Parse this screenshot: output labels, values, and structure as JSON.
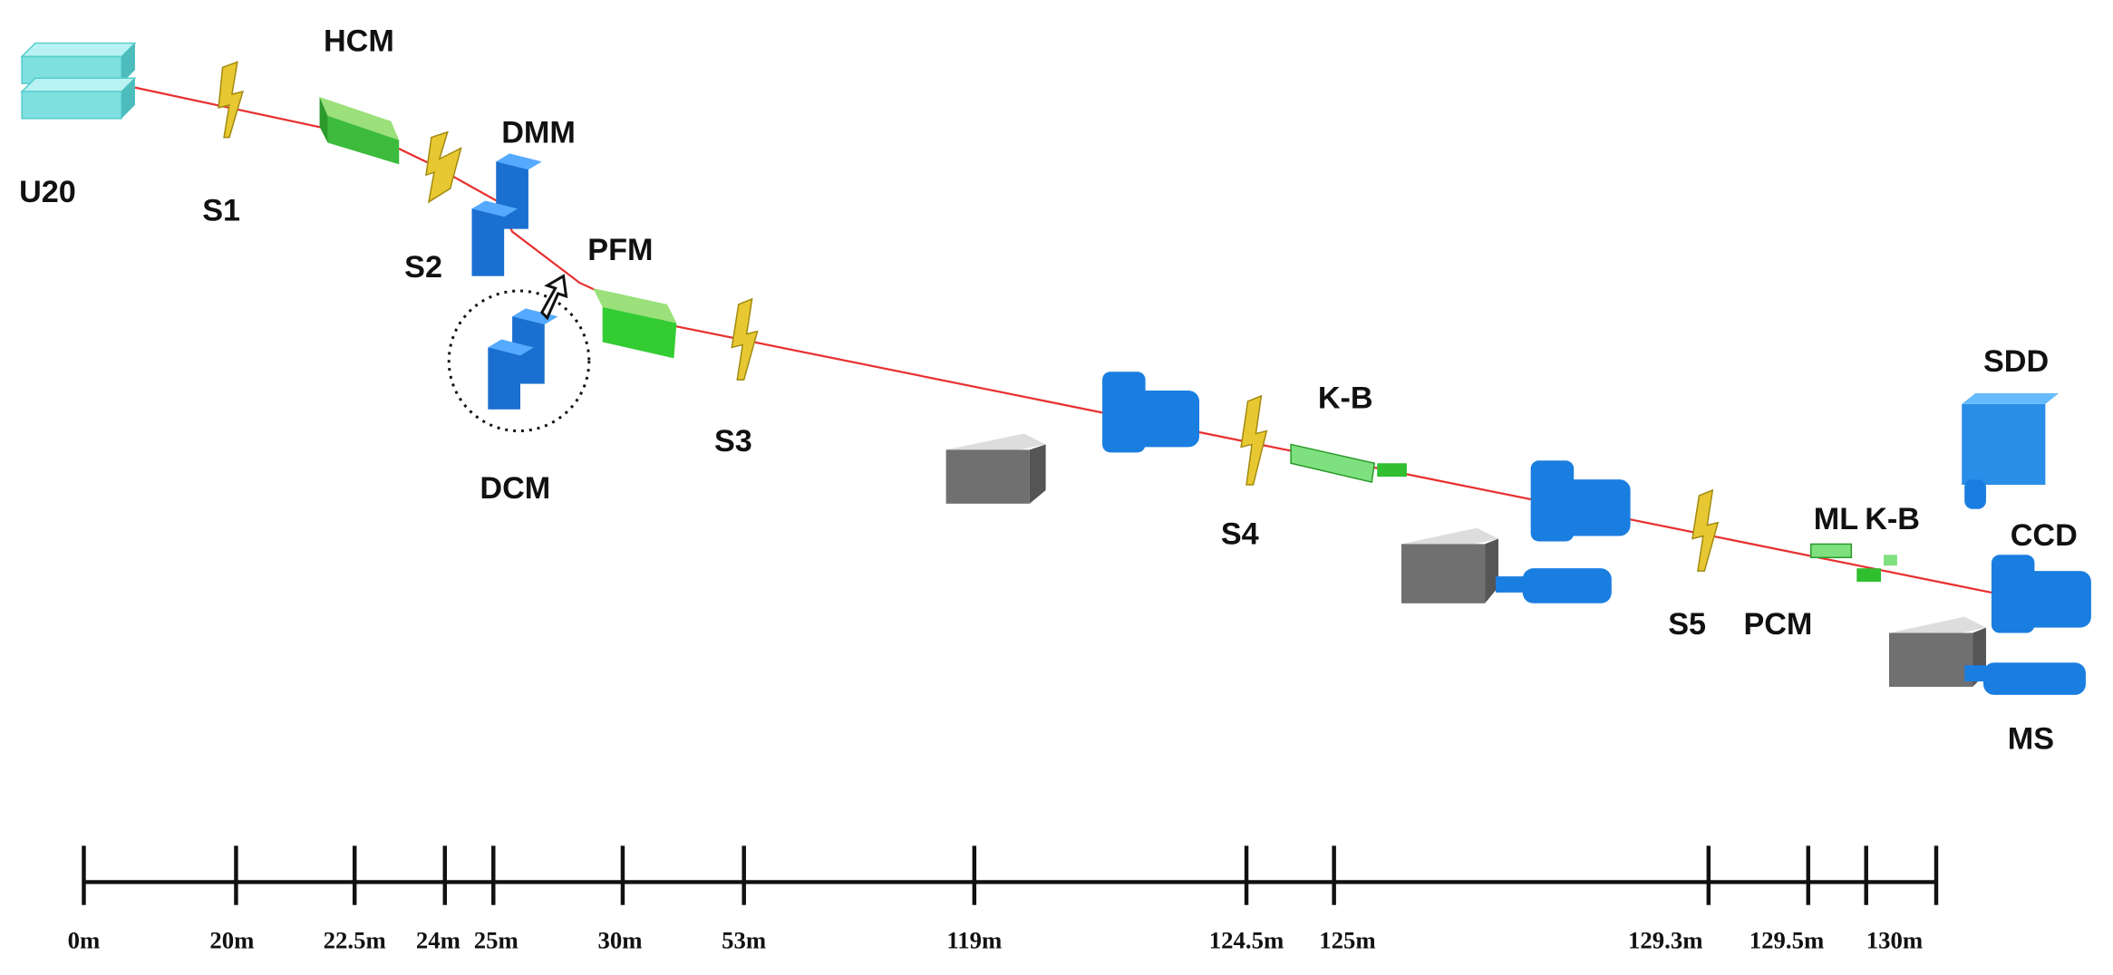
{
  "components": [
    {
      "label": "U20"
    },
    {
      "label": "S1"
    },
    {
      "label": "HCM"
    },
    {
      "label": "S2"
    },
    {
      "label": "DMM"
    },
    {
      "label": "PFM"
    },
    {
      "label": "DCM"
    },
    {
      "label": "S3"
    },
    {
      "label": "K-B"
    },
    {
      "label": "S4"
    },
    {
      "label": "SDD"
    },
    {
      "label": "ML"
    },
    {
      "label": "K-B"
    },
    {
      "label": "CCD"
    },
    {
      "label": "S5"
    },
    {
      "label": "PCM"
    },
    {
      "label": "MS"
    }
  ],
  "scale": {
    "labels": [
      "0m",
      "20m",
      "22.5m",
      "24m",
      "25m",
      "30m",
      "53m",
      "119m",
      "124.5m",
      "125m",
      "129.3m",
      "129.5m",
      "130m"
    ]
  }
}
